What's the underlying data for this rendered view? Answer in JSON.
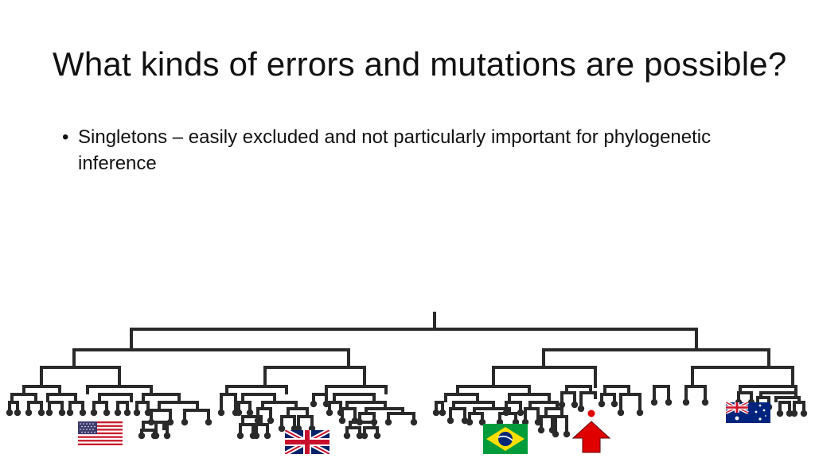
{
  "slide": {
    "title": "What kinds of errors and mutations are possible?",
    "bullets": [
      "Singletons – easily excluded and not particularly important for phylogenetic inference"
    ]
  },
  "figure": {
    "tree_color": "#2a2a2a",
    "flags": [
      {
        "name": "usa-flag",
        "country": "United States"
      },
      {
        "name": "uk-flag",
        "country": "United Kingdom"
      },
      {
        "name": "brazil-flag",
        "country": "Brazil"
      },
      {
        "name": "australia-flag",
        "country": "Australia"
      }
    ],
    "marker": {
      "name": "singleton-arrow-icon",
      "color": "#e00000"
    }
  }
}
